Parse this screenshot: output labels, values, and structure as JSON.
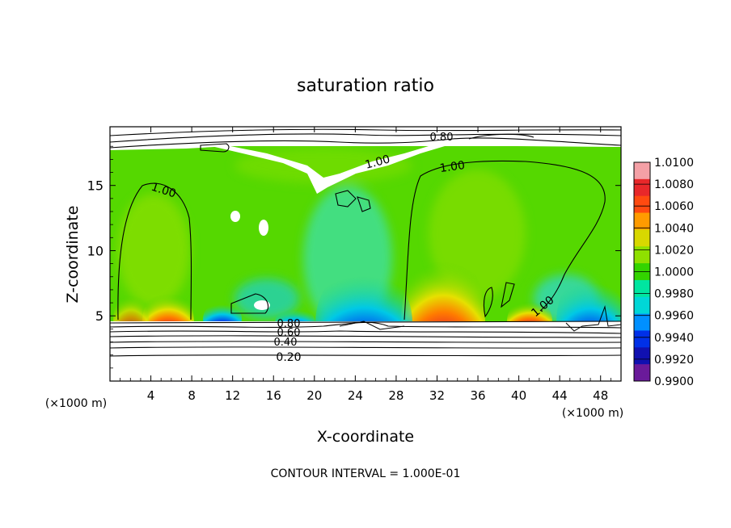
{
  "chart_data": {
    "type": "heatmap",
    "title": "saturation ratio",
    "xlabel": "X-coordinate",
    "ylabel": "Z-coordinate",
    "x_unit": "(×1000 m)",
    "x_unit_right": "(×1000 m)",
    "xlim": [
      0,
      50
    ],
    "ylim": [
      0,
      19.5
    ],
    "x_ticks": [
      4,
      8,
      12,
      16,
      20,
      24,
      28,
      32,
      36,
      40,
      44,
      48
    ],
    "y_ticks": [
      5,
      10,
      15
    ],
    "footer": "CONTOUR INTERVAL = 1.000E-01",
    "contour_labels": [
      "0.80",
      "1.00",
      "1.00",
      "1.00",
      "1.00",
      "0.80",
      "0.60",
      "0.40",
      "0.20"
    ],
    "colorbar": {
      "labels": [
        "1.0100",
        "1.0080",
        "1.0060",
        "1.0040",
        "1.0020",
        "1.0000",
        "0.9980",
        "0.9960",
        "0.9940",
        "0.9920",
        "0.9900"
      ],
      "colors": [
        "#f4a0a6",
        "#e8282a",
        "#ff4a10",
        "#ff9b00",
        "#d8d800",
        "#8fe000",
        "#33d400",
        "#00e6a0",
        "#00d7d7",
        "#0090ff",
        "#0030e8",
        "#1010b0",
        "#6a1a9a"
      ]
    }
  }
}
